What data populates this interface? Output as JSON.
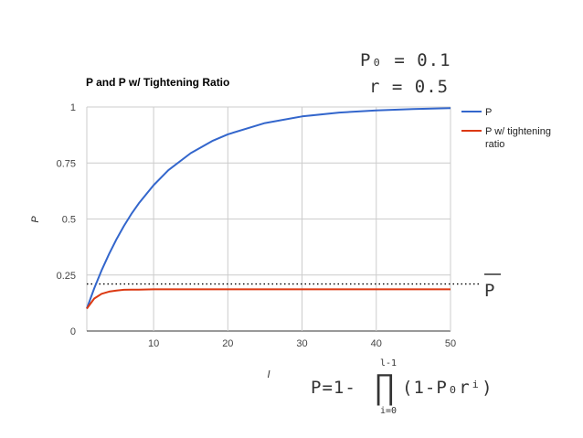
{
  "chart_data": {
    "type": "line",
    "title": "P and P w/ Tightening Ratio",
    "xlabel": "l",
    "ylabel": "P",
    "xlim": [
      1,
      50
    ],
    "ylim": [
      0,
      1
    ],
    "x_ticks": [
      10,
      20,
      30,
      40,
      50
    ],
    "y_ticks": [
      0,
      0.25,
      0.5,
      0.75,
      1
    ],
    "x_tick_labels": [
      "10",
      "20",
      "30",
      "40",
      "50"
    ],
    "y_tick_labels": [
      "0",
      "0.25",
      "0.5",
      "0.75",
      "1"
    ],
    "grid": true,
    "legend": "right",
    "x": [
      1,
      2,
      3,
      4,
      5,
      6,
      7,
      8,
      10,
      12,
      15,
      18,
      20,
      25,
      30,
      35,
      40,
      45,
      50
    ],
    "series": [
      {
        "name": "P",
        "color": "#3366cc",
        "values": [
          0.1,
          0.19,
          0.271,
          0.344,
          0.41,
          0.469,
          0.522,
          0.57,
          0.651,
          0.718,
          0.794,
          0.85,
          0.878,
          0.928,
          0.958,
          0.975,
          0.985,
          0.991,
          0.995
        ]
      },
      {
        "name": "P w/ tightening ratio",
        "color": "#dc3912",
        "values": [
          0.1,
          0.145,
          0.166,
          0.176,
          0.181,
          0.184,
          0.185,
          0.185,
          0.186,
          0.186,
          0.186,
          0.186,
          0.186,
          0.186,
          0.186,
          0.186,
          0.186,
          0.186,
          0.186
        ]
      }
    ],
    "reference_line": {
      "y": 0.21,
      "style": "dotted",
      "color": "#000000"
    }
  },
  "annotations": {
    "p0_line": "P₀ = 0.1",
    "r_line": "r = 0.5",
    "pbar_label": "P",
    "formula_left": "P=1-",
    "product_symbol": "∏",
    "product_upper": "l-1",
    "product_lower": "i=0",
    "formula_right": "(1-P₀rⁱ)"
  }
}
